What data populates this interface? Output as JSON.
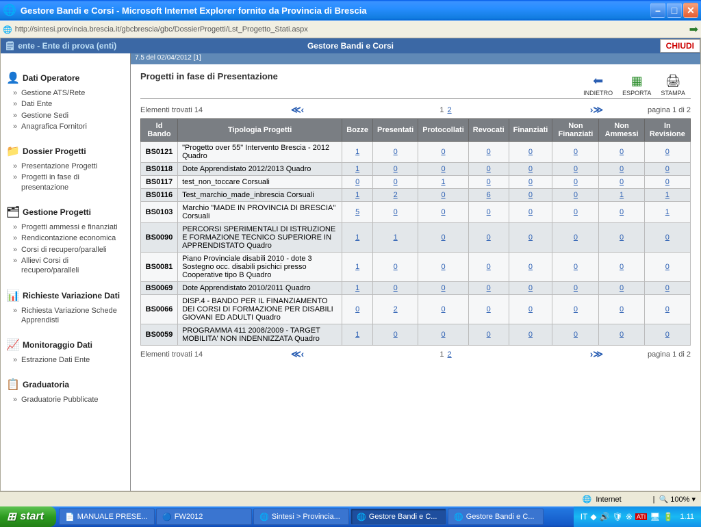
{
  "window": {
    "title": "Gestore Bandi e Corsi - Microsoft Internet Explorer fornito da Provincia di Brescia"
  },
  "address": {
    "url": "http://sintesi.provincia.brescia.it/gbcbrescia/gbc/DossierProgetti/Lst_Progetto_Stati.aspx"
  },
  "app": {
    "user": "ente - Ente di prova (enti)",
    "title": "Gestore Bandi e Corsi",
    "close": "CHIUDI",
    "version": "7.5 del 02/04/2012 [1]"
  },
  "sidebar": [
    {
      "icon": "👤",
      "title": "Dati Operatore",
      "items": [
        "Gestione ATS/Rete",
        "Dati Ente",
        "Gestione Sedi",
        "Anagrafica Fornitori"
      ]
    },
    {
      "icon": "📁",
      "title": "Dossier Progetti",
      "items": [
        "Presentazione Progetti",
        "Progetti in fase di presentazione"
      ]
    },
    {
      "icon": "🗂",
      "title": "Gestione Progetti",
      "items": [
        "Progetti ammessi e finanziati",
        "Rendicontazione economica",
        "Corsi di recupero/paralleli",
        "Allievi Corsi di recupero/paralleli"
      ]
    },
    {
      "icon": "📊",
      "title": "Richieste Variazione Dati",
      "items": [
        "Richiesta Variazione Schede Apprendisti"
      ]
    },
    {
      "icon": "📈",
      "title": "Monitoraggio Dati",
      "items": [
        "Estrazione Dati Ente"
      ]
    },
    {
      "icon": "📋",
      "title": "Graduatoria",
      "items": [
        "Graduatorie Pubblicate"
      ]
    }
  ],
  "main": {
    "title": "Progetti in fase di Presentazione",
    "toolbar": {
      "back": "INDIETRO",
      "export": "ESPORTA",
      "print": "STAMPA"
    },
    "found": "Elementi trovati 14",
    "pageinfo": "pagina 1 di 2",
    "pages": [
      "1",
      "2"
    ],
    "headers": [
      "Id Bando",
      "Tipologia Progetti",
      "Bozze",
      "Presentati",
      "Protocollati",
      "Revocati",
      "Finanziati",
      "Non Finanziati",
      "Non Ammessi",
      "In Revisione"
    ],
    "rows": [
      {
        "id": "BS0121",
        "desc": "\"Progetto over 55\" Intervento Brescia - 2012 Quadro",
        "v": [
          "1",
          "0",
          "0",
          "0",
          "0",
          "0",
          "0",
          "0"
        ],
        "cls": "odd"
      },
      {
        "id": "BS0118",
        "desc": "Dote Apprendistato 2012/2013 Quadro",
        "v": [
          "1",
          "0",
          "0",
          "0",
          "0",
          "0",
          "0",
          "0"
        ],
        "cls": "even"
      },
      {
        "id": "BS0117",
        "desc": "test_non_toccare Corsuali",
        "v": [
          "0",
          "0",
          "1",
          "0",
          "0",
          "0",
          "0",
          "0"
        ],
        "cls": "odd"
      },
      {
        "id": "BS0116",
        "desc": "Test_marchio_made_inbrescia Corsuali",
        "v": [
          "1",
          "2",
          "0",
          "6",
          "0",
          "0",
          "1",
          "1"
        ],
        "cls": "even"
      },
      {
        "id": "BS0103",
        "desc": "Marchio \"MADE IN PROVINCIA DI BRESCIA\" Corsuali",
        "v": [
          "5",
          "0",
          "0",
          "0",
          "0",
          "0",
          "0",
          "1"
        ],
        "cls": "odd"
      },
      {
        "id": "BS0090",
        "desc": "PERCORSI SPERIMENTALI DI ISTRUZIONE E FORMAZIONE TECNICO SUPERIORE IN APPRENDISTATO Quadro",
        "v": [
          "1",
          "1",
          "0",
          "0",
          "0",
          "0",
          "0",
          "0"
        ],
        "cls": "even"
      },
      {
        "id": "BS0081",
        "desc": "Piano Provinciale disabili 2010 - dote 3 Sostegno occ. disabili psichici presso Cooperative tipo B Quadro",
        "v": [
          "1",
          "0",
          "0",
          "0",
          "0",
          "0",
          "0",
          "0"
        ],
        "cls": "odd"
      },
      {
        "id": "BS0069",
        "desc": "Dote Apprendistato 2010/2011 Quadro",
        "v": [
          "1",
          "0",
          "0",
          "0",
          "0",
          "0",
          "0",
          "0"
        ],
        "cls": "even"
      },
      {
        "id": "BS0066",
        "desc": "DISP.4 - BANDO PER IL FINANZIAMENTO DEI CORSI DI FORMAZIONE PER DISABILI GIOVANI ED ADULTI Quadro",
        "v": [
          "0",
          "2",
          "0",
          "0",
          "0",
          "0",
          "0",
          "0"
        ],
        "cls": "odd"
      },
      {
        "id": "BS0059",
        "desc": "PROGRAMMA 411 2008/2009 - TARGET MOBILITA' NON INDENNIZZATA Quadro",
        "v": [
          "1",
          "0",
          "0",
          "0",
          "0",
          "0",
          "0",
          "0"
        ],
        "cls": "even"
      }
    ]
  },
  "status": {
    "zone": "Internet",
    "zoom": "100%"
  },
  "taskbar": {
    "start": "start",
    "items": [
      {
        "icon": "📄",
        "label": "MANUALE PRESE..."
      },
      {
        "icon": "🔵",
        "label": "FW2012"
      },
      {
        "icon": "🌐",
        "label": "Sintesi > Provincia..."
      },
      {
        "icon": "🌐",
        "label": "Gestore Bandi e C...",
        "active": true
      },
      {
        "icon": "🌐",
        "label": "Gestore Bandi e C..."
      }
    ],
    "lang": "IT",
    "clock": "1.11"
  }
}
